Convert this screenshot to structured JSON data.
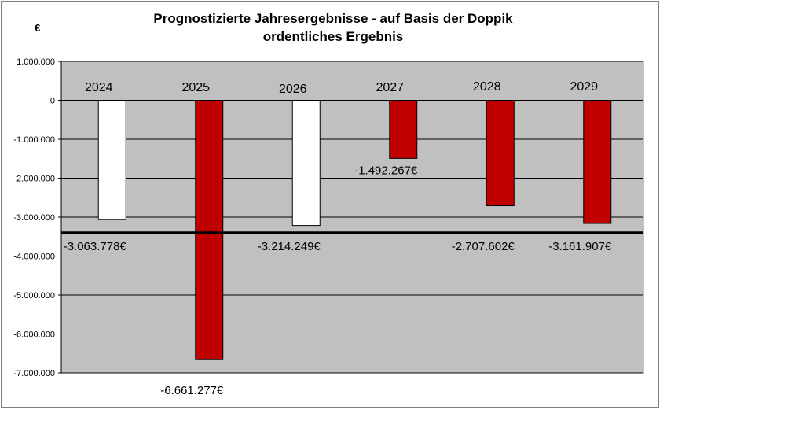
{
  "chart_data": {
    "type": "bar",
    "title": "Prognostizierte Jahresergebnisse - auf Basis der Doppik",
    "subtitle": "ordentliches Ergebnis",
    "unit_label": "€",
    "categories": [
      "2024",
      "2025",
      "2026",
      "2027",
      "2028",
      "2029"
    ],
    "values": [
      -3063778,
      -6661277,
      -3214249,
      -1492267,
      -2707602,
      -3161907
    ],
    "data_labels": [
      "-3.063.778€",
      "-6.661.277€",
      "-3.214.249€",
      "-1.492.267€",
      "-2.707.602€",
      "-3.161.907€"
    ],
    "bar_colors": [
      "#ffffff",
      "#c00000",
      "#ffffff",
      "#c00000",
      "#c00000",
      "#c00000"
    ],
    "ylim": [
      -7000000,
      1000000
    ],
    "y_ticks": [
      1000000,
      0,
      -1000000,
      -2000000,
      -3000000,
      -4000000,
      -5000000,
      -6000000,
      -7000000
    ],
    "y_tick_labels": [
      "1.000.000",
      "0",
      "-1.000.000",
      "-2.000.000",
      "-3.000.000",
      "-4.000.000",
      "-5.000.000",
      "-6.000.000",
      "-7.000.000"
    ],
    "reference_line": -3400000,
    "grid": true,
    "legend": "none",
    "plot_background": "#c0c0c0",
    "reference_line_color": "#000000"
  }
}
